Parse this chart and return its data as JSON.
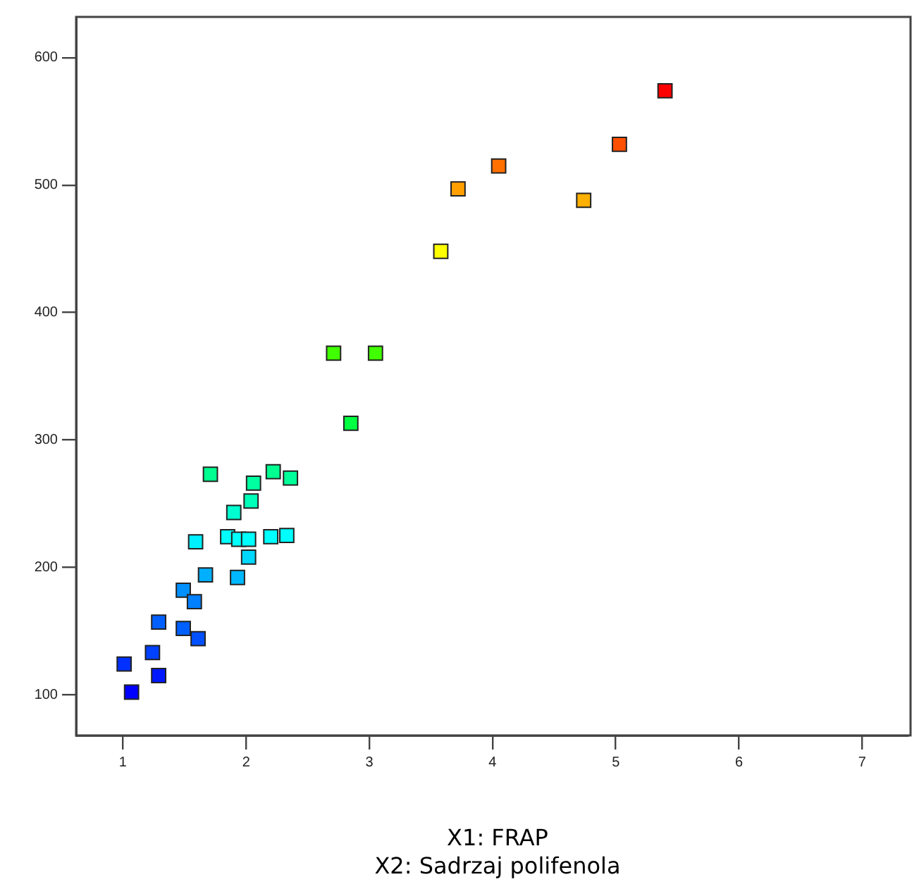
{
  "chart_data": {
    "type": "scatter",
    "xlabel": "X1: FRAP\nX2: Sadrzaj polifenola",
    "x": [
      1.01,
      1.07,
      1.24,
      1.29,
      1.29,
      1.49,
      1.49,
      1.58,
      1.61,
      1.67,
      1.59,
      1.71,
      1.93,
      2.02,
      1.85,
      1.94,
      2.02,
      2.2,
      2.33,
      1.9,
      2.04,
      2.06,
      2.22,
      2.36,
      2.71,
      3.05,
      2.85,
      3.58,
      3.72,
      4.05,
      4.74,
      5.03,
      5.4
    ],
    "values": [
      124,
      102,
      133,
      115,
      157,
      182,
      152,
      173,
      144,
      194,
      220,
      273,
      192,
      208,
      224,
      222,
      222,
      224,
      225,
      243,
      252,
      266,
      275,
      270,
      368,
      368,
      313,
      448,
      497,
      515,
      488,
      532,
      574
    ],
    "colors": [
      "#0030ff",
      "#0000ff",
      "#0040ff",
      "#0018ff",
      "#0060ff",
      "#0090ff",
      "#0060ff",
      "#0080ff",
      "#0050ff",
      "#00b0ff",
      "#00f0ff",
      "#00ff90",
      "#00b8ff",
      "#00d8ff",
      "#00ffff",
      "#00ffff",
      "#00ffff",
      "#00ffff",
      "#00ffff",
      "#00ffd0",
      "#00ffb8",
      "#00ffa0",
      "#00ff90",
      "#00ff98",
      "#40ff00",
      "#40ff00",
      "#00ff40",
      "#ffff00",
      "#ffa000",
      "#ff7000",
      "#ffb000",
      "#ff5000",
      "#ff0000"
    ],
    "marker": "square",
    "grid": false,
    "legend": false,
    "xlim": [
      0.62,
      7.37
    ],
    "xticks": [
      1,
      2,
      3,
      4,
      5,
      6,
      7
    ],
    "ylim": [
      68,
      632
    ],
    "yticks": [
      100,
      200,
      300,
      400,
      500,
      600
    ]
  }
}
